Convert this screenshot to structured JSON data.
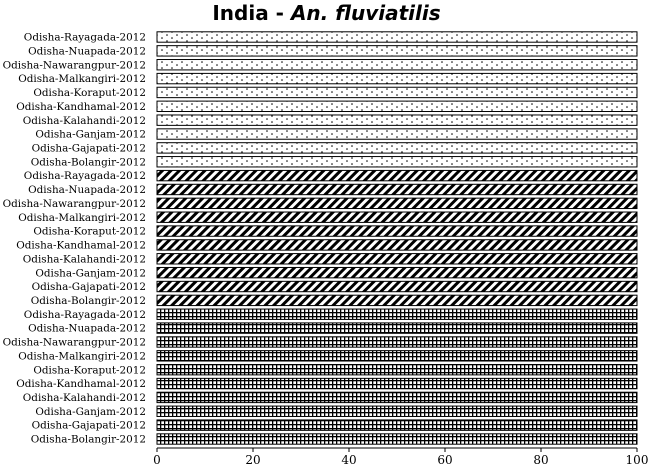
{
  "chart_data": {
    "type": "bar",
    "orientation": "horizontal",
    "stacked": true,
    "title_prefix": "India - ",
    "title_species": "An. fluviatilis",
    "xlabel": "",
    "ylabel": "",
    "xlim": [
      0,
      100
    ],
    "x_ticks": [
      "0",
      "20",
      "40",
      "60",
      "80",
      "100"
    ],
    "grid": false,
    "legend": "none",
    "categories": [
      "Odisha-Rayagada-2012",
      "Odisha-Nuapada-2012",
      "Odisha-Nawarangpur-2012",
      "Odisha-Malkangiri-2012",
      "Odisha-Koraput-2012",
      "Odisha-Kandhamal-2012",
      "Odisha-Kalahandi-2012",
      "Odisha-Ganjam-2012",
      "Odisha-Gajapati-2012",
      "Odisha-Bolangir-2012",
      "Odisha-Rayagada-2012",
      "Odisha-Nuapada-2012",
      "Odisha-Nawarangpur-2012",
      "Odisha-Malkangiri-2012",
      "Odisha-Koraput-2012",
      "Odisha-Kandhamal-2012",
      "Odisha-Kalahandi-2012",
      "Odisha-Ganjam-2012",
      "Odisha-Gajapati-2012",
      "Odisha-Bolangir-2012",
      "Odisha-Rayagada-2012",
      "Odisha-Nuapada-2012",
      "Odisha-Nawarangpur-2012",
      "Odisha-Malkangiri-2012",
      "Odisha-Koraput-2012",
      "Odisha-Kandhamal-2012",
      "Odisha-Kalahandi-2012",
      "Odisha-Ganjam-2012",
      "Odisha-Gajapati-2012",
      "Odisha-Bolangir-2012"
    ],
    "bar_patterns": [
      "dots",
      "dots",
      "dots",
      "dots",
      "dots",
      "dots",
      "dots",
      "dots",
      "dots",
      "dots",
      "diagonal",
      "diagonal",
      "diagonal",
      "diagonal",
      "diagonal",
      "diagonal",
      "diagonal",
      "diagonal",
      "diagonal",
      "diagonal",
      "grid",
      "grid",
      "grid",
      "grid",
      "grid",
      "grid",
      "grid",
      "grid",
      "grid",
      "grid"
    ],
    "values": [
      100,
      100,
      100,
      100,
      100,
      100,
      100,
      100,
      100,
      100,
      100,
      100,
      100,
      100,
      100,
      100,
      100,
      100,
      100,
      100,
      100,
      100,
      100,
      100,
      100,
      100,
      100,
      100,
      100,
      100
    ]
  }
}
